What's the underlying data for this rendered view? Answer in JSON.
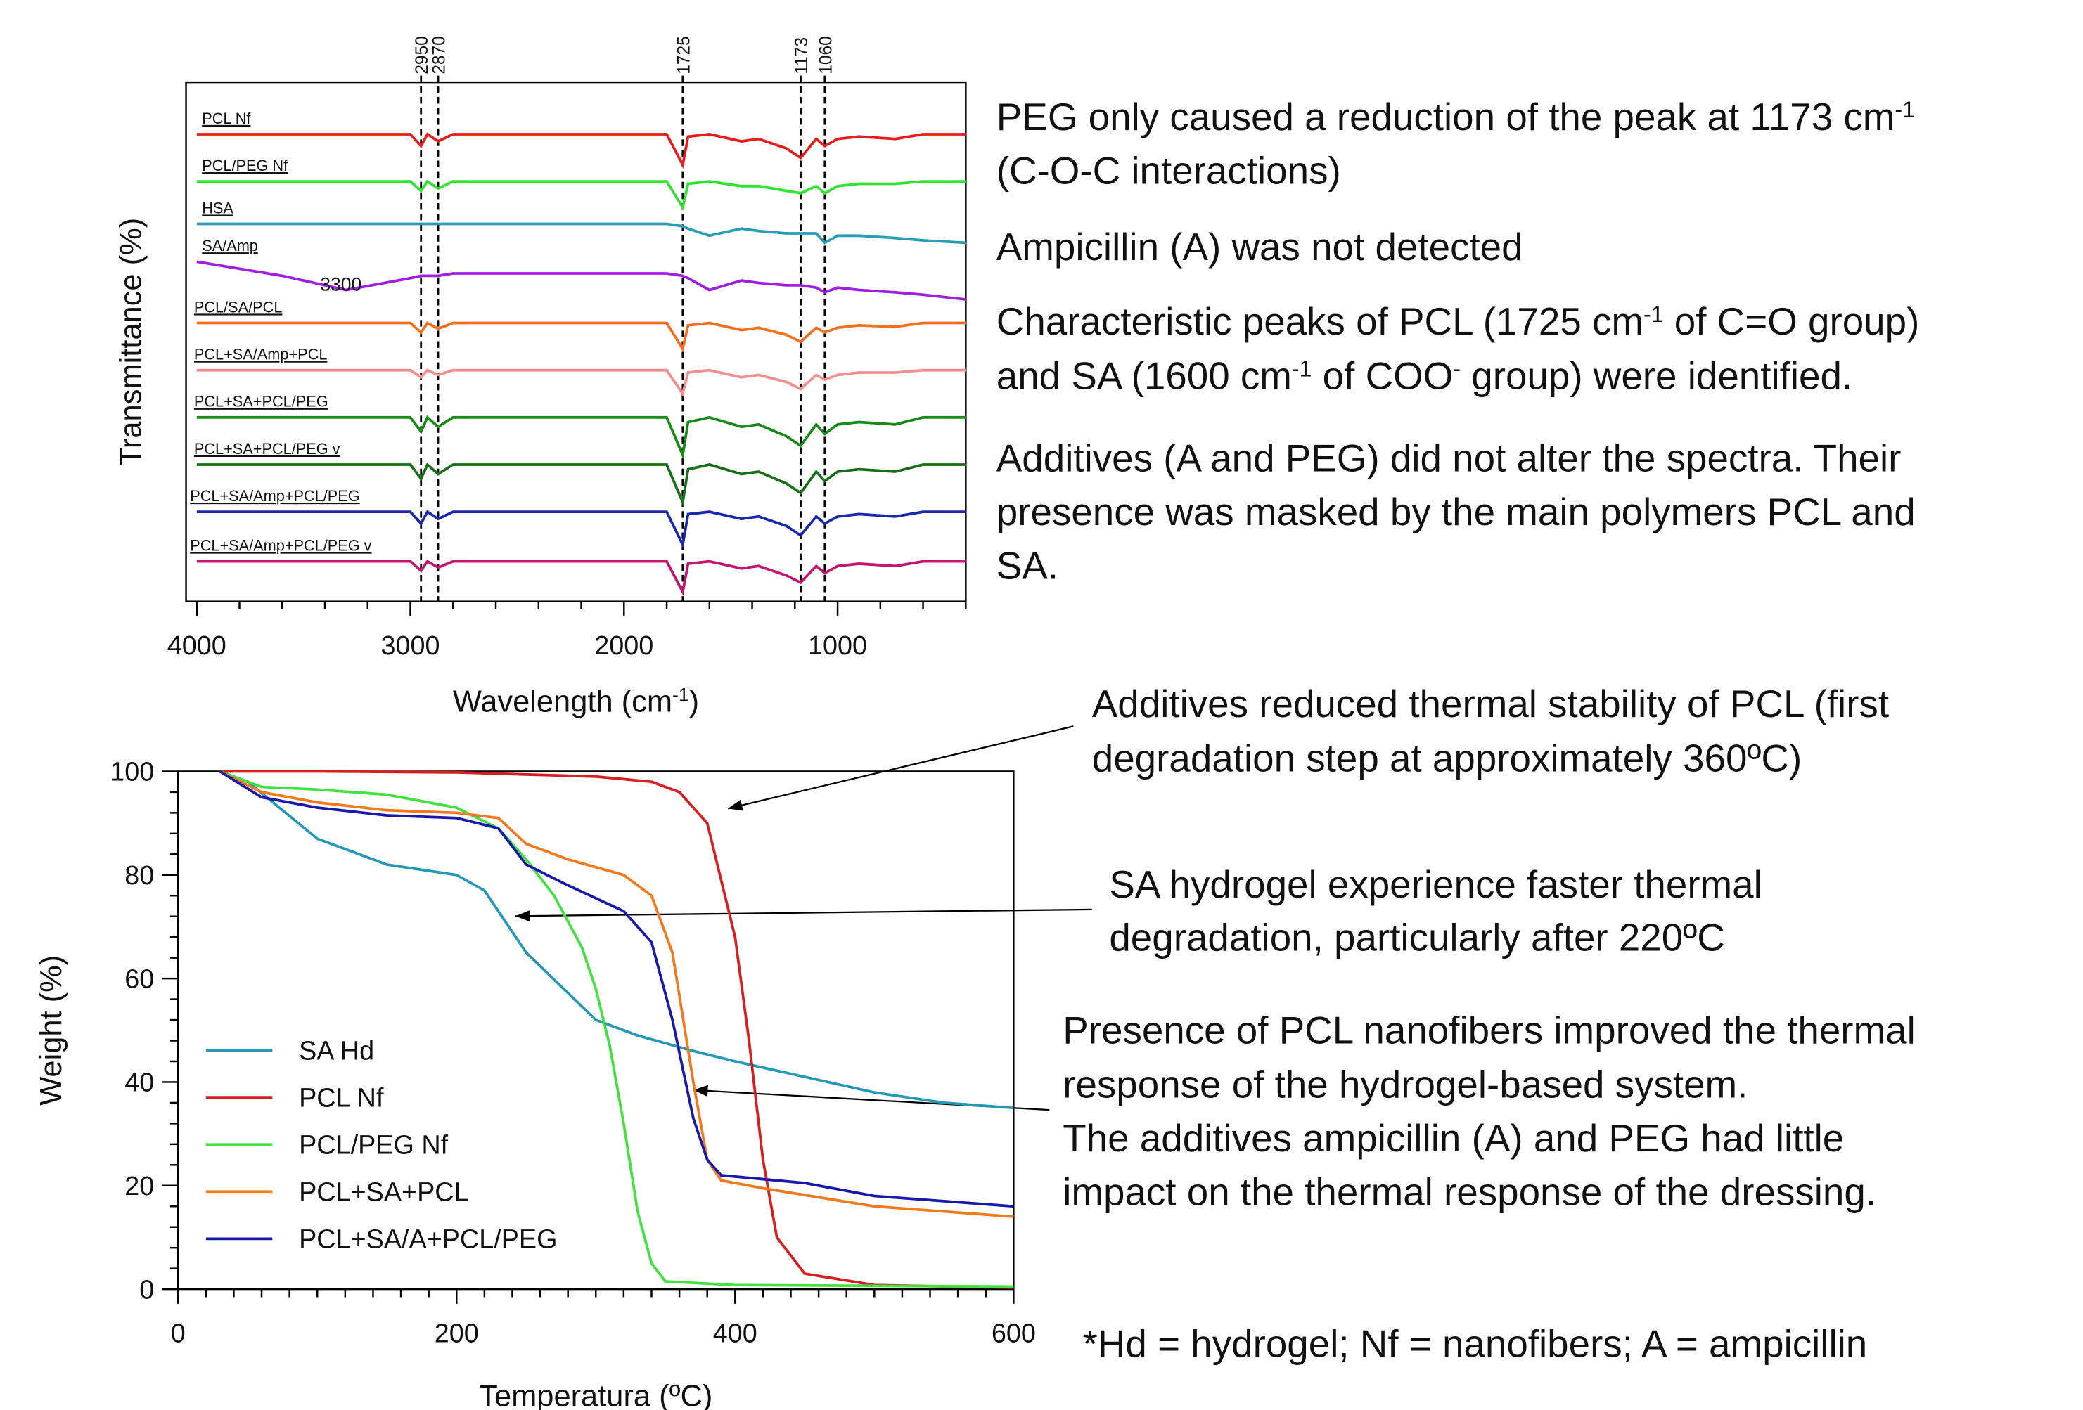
{
  "chart_data": [
    {
      "type": "line",
      "ylabel": "Transmittance (%)",
      "xlabel": [
        "Wavelength (cm",
        {
          "sup": "-1"
        },
        ")"
      ],
      "xlim": [
        4050,
        400
      ],
      "xticks": [
        4000,
        3000,
        2000,
        1000
      ],
      "ylim": [
        0,
        11
      ],
      "peaks": [
        2950,
        2870,
        1725,
        1173,
        1060
      ],
      "annotation": "3300",
      "x": [
        4000,
        3600,
        3300,
        3000,
        2950,
        2920,
        2870,
        2800,
        2400,
        2000,
        1800,
        1725,
        1700,
        1600,
        1450,
        1370,
        1240,
        1173,
        1100,
        1060,
        1000,
        900,
        730,
        600,
        400
      ],
      "series": [
        {
          "name": "PCL Nf",
          "color": "#e0201c",
          "values": [
            9.9,
            9.9,
            9.9,
            9.9,
            9.65,
            9.9,
            9.75,
            9.9,
            9.9,
            9.9,
            9.9,
            9.25,
            9.85,
            9.9,
            9.75,
            9.8,
            9.6,
            9.4,
            9.8,
            9.65,
            9.8,
            9.85,
            9.8,
            9.9,
            9.9
          ]
        },
        {
          "name": "PCL/PEG Nf",
          "color": "#33e033",
          "values": [
            8.9,
            8.9,
            8.9,
            8.9,
            8.7,
            8.9,
            8.75,
            8.9,
            8.9,
            8.9,
            8.9,
            8.35,
            8.85,
            8.9,
            8.8,
            8.8,
            8.7,
            8.65,
            8.8,
            8.65,
            8.8,
            8.85,
            8.85,
            8.9,
            8.9
          ]
        },
        {
          "name": "HSA",
          "color": "#2a9db5",
          "values": [
            8.0,
            8.0,
            8.0,
            8.0,
            8.0,
            8.0,
            8.0,
            8.0,
            8.0,
            8.0,
            8.0,
            7.95,
            7.9,
            7.75,
            7.9,
            7.85,
            7.8,
            7.8,
            7.8,
            7.6,
            7.75,
            7.75,
            7.7,
            7.65,
            7.6
          ]
        },
        {
          "name": "SA/Amp",
          "color": "#a020e0",
          "values": [
            7.2,
            6.9,
            6.6,
            6.85,
            6.9,
            6.9,
            6.9,
            6.95,
            6.95,
            6.95,
            6.95,
            6.9,
            6.85,
            6.6,
            6.8,
            6.75,
            6.7,
            6.7,
            6.65,
            6.55,
            6.65,
            6.6,
            6.55,
            6.5,
            6.4
          ]
        },
        {
          "name": "PCL/SA/PCL",
          "color": "#f07020",
          "values": [
            5.9,
            5.9,
            5.9,
            5.9,
            5.7,
            5.9,
            5.78,
            5.9,
            5.9,
            5.9,
            5.9,
            5.35,
            5.85,
            5.9,
            5.75,
            5.8,
            5.65,
            5.5,
            5.8,
            5.7,
            5.8,
            5.85,
            5.82,
            5.9,
            5.9
          ]
        },
        {
          "name": "PCL+SA/Amp+PCL",
          "color": "#f09090",
          "values": [
            4.9,
            4.9,
            4.9,
            4.9,
            4.75,
            4.9,
            4.8,
            4.9,
            4.9,
            4.9,
            4.9,
            4.4,
            4.85,
            4.9,
            4.75,
            4.8,
            4.65,
            4.5,
            4.8,
            4.7,
            4.8,
            4.85,
            4.85,
            4.9,
            4.9
          ]
        },
        {
          "name": "PCL+SA+PCL/PEG",
          "color": "#1a8a1a",
          "values": [
            3.9,
            3.9,
            3.9,
            3.9,
            3.6,
            3.9,
            3.7,
            3.9,
            3.9,
            3.9,
            3.9,
            3.1,
            3.8,
            3.9,
            3.7,
            3.75,
            3.5,
            3.3,
            3.75,
            3.55,
            3.75,
            3.8,
            3.75,
            3.9,
            3.9
          ]
        },
        {
          "name": "PCL+SA+PCL/PEG v",
          "color": "#1a6e1a",
          "values": [
            2.9,
            2.9,
            2.9,
            2.9,
            2.6,
            2.9,
            2.7,
            2.9,
            2.9,
            2.9,
            2.9,
            2.1,
            2.8,
            2.9,
            2.7,
            2.75,
            2.5,
            2.3,
            2.75,
            2.55,
            2.75,
            2.8,
            2.75,
            2.9,
            2.9
          ]
        },
        {
          "name": "PCL+SA/Amp+PCL/PEG",
          "color": "#1a2aa8",
          "values": [
            1.9,
            1.9,
            1.9,
            1.9,
            1.65,
            1.9,
            1.75,
            1.9,
            1.9,
            1.9,
            1.9,
            1.2,
            1.85,
            1.9,
            1.75,
            1.8,
            1.6,
            1.4,
            1.8,
            1.65,
            1.8,
            1.85,
            1.8,
            1.9,
            1.9
          ]
        },
        {
          "name": "PCL+SA/Amp+PCL/PEG v",
          "color": "#c01870",
          "values": [
            0.85,
            0.85,
            0.85,
            0.85,
            0.65,
            0.85,
            0.72,
            0.85,
            0.85,
            0.85,
            0.85,
            0.2,
            0.8,
            0.85,
            0.7,
            0.75,
            0.55,
            0.4,
            0.75,
            0.6,
            0.75,
            0.8,
            0.75,
            0.85,
            0.85
          ]
        }
      ]
    },
    {
      "type": "line",
      "ylabel": "Weight (%)",
      "xlabel": [
        "Temperatura (ºC)"
      ],
      "xlim": [
        0,
        600
      ],
      "xticks": [
        0,
        200,
        400,
        600
      ],
      "ylim": [
        0,
        100
      ],
      "yticks": [
        0,
        20,
        40,
        60,
        80,
        100
      ],
      "legend": "lower left",
      "series": [
        {
          "name": "SA Hd",
          "color": "#2899b5",
          "x": [
            30,
            50,
            100,
            150,
            200,
            220,
            250,
            300,
            330,
            350,
            370,
            400,
            450,
            500,
            550,
            600
          ],
          "values": [
            100,
            98,
            87,
            82,
            80,
            77,
            65,
            52,
            49,
            47.5,
            46,
            44,
            41,
            38,
            36,
            35
          ]
        },
        {
          "name": "PCL Nf",
          "color": "#d42020",
          "x": [
            30,
            100,
            200,
            300,
            340,
            360,
            380,
            400,
            410,
            420,
            430,
            450,
            500,
            600
          ],
          "values": [
            100,
            100,
            99.8,
            99,
            98,
            96,
            90,
            68,
            48,
            25,
            10,
            3,
            0.8,
            0.3
          ]
        },
        {
          "name": "PCL/PEG Nf",
          "color": "#44e044",
          "x": [
            30,
            60,
            100,
            150,
            200,
            230,
            250,
            270,
            290,
            300,
            310,
            320,
            330,
            340,
            350,
            400,
            600
          ],
          "values": [
            100,
            97,
            96.5,
            95.5,
            93,
            89,
            83,
            76,
            66,
            58,
            47,
            32,
            15,
            5,
            1.5,
            0.8,
            0.5
          ]
        },
        {
          "name": "PCL+SA+PCL",
          "color": "#f07a20",
          "x": [
            30,
            60,
            100,
            150,
            200,
            230,
            250,
            280,
            320,
            340,
            355,
            370,
            380,
            390,
            420,
            500,
            600
          ],
          "values": [
            100,
            96,
            94,
            92.5,
            92,
            91,
            86,
            83,
            80,
            76,
            65,
            40,
            25,
            21,
            19.5,
            16,
            14
          ]
        },
        {
          "name": "PCL+SA/A+PCL/PEG",
          "color": "#1a1aa8",
          "x": [
            30,
            60,
            100,
            150,
            200,
            230,
            250,
            280,
            320,
            340,
            355,
            370,
            380,
            390,
            450,
            500,
            600
          ],
          "values": [
            100,
            95,
            93,
            91.5,
            91,
            89,
            82,
            78,
            73,
            67,
            52,
            33,
            25,
            22,
            20.5,
            18,
            16
          ]
        }
      ]
    }
  ],
  "notes": [
    [
      [
        "PEG only caused a reduction of the peak at 1173 cm",
        {
          "sup": "-1"
        }
      ],
      [
        "(C-O-C interactions)"
      ]
    ],
    [
      [
        "Ampicillin (A) was not detected"
      ]
    ],
    [
      [
        "Characteristic peaks of PCL (1725 cm",
        {
          "sup": "-1"
        },
        " of C=O group)"
      ],
      [
        "and SA (1600 cm",
        {
          "sup": "-1"
        },
        " of COO",
        {
          "sup": "-"
        },
        " group) were identified."
      ]
    ],
    [
      [
        "Additives (A and PEG) did not alter the spectra. Their"
      ],
      [
        "presence was masked by the main polymers PCL and"
      ],
      [
        "SA."
      ]
    ],
    [
      [
        "Additives reduced thermal stability of PCL (first"
      ],
      [
        "degradation step at approximately 360ºC)"
      ]
    ],
    [
      [
        "SA hydrogel experience faster thermal"
      ],
      [
        "degradation, particularly after 220ºC"
      ]
    ],
    [
      [
        "Presence of PCL nanofibers improved the thermal"
      ],
      [
        "response of the hydrogel-based system."
      ],
      [
        "The additives ampicillin (A) and PEG had little"
      ],
      [
        "impact on the thermal response of the dressing."
      ]
    ],
    [
      [
        "*Hd = hydrogel; Nf = nanofibers; A = ampicillin"
      ]
    ]
  ]
}
